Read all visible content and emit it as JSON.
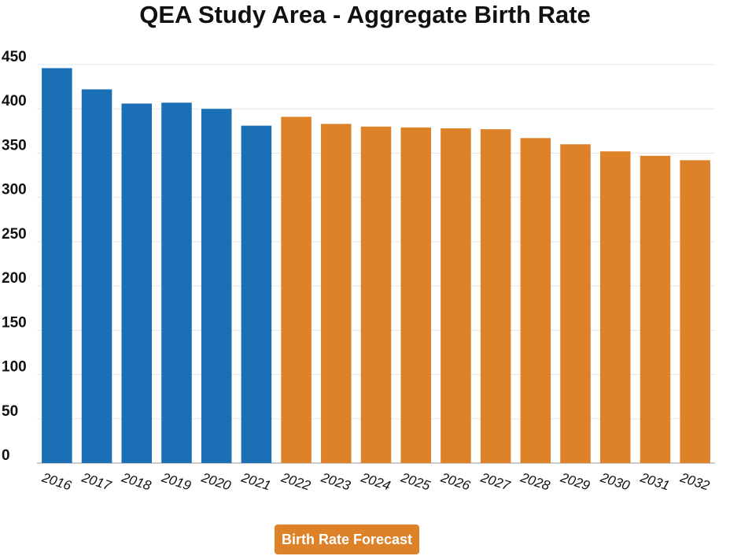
{
  "chart_data": {
    "type": "bar",
    "title": "QEA Study Area - Aggregate Birth Rate",
    "xlabel": "",
    "ylabel": "",
    "ylim": [
      0,
      450
    ],
    "yticks": [
      0,
      50,
      100,
      150,
      200,
      250,
      300,
      350,
      400,
      450
    ],
    "grid": true,
    "categories": [
      "2016",
      "2017",
      "2018",
      "2019",
      "2020",
      "2021",
      "2022",
      "2023",
      "2024",
      "2025",
      "2026",
      "2027",
      "2028",
      "2029",
      "2030",
      "2031",
      "2032"
    ],
    "values": [
      446,
      422,
      406,
      407,
      400,
      381,
      391,
      383,
      380,
      379,
      378,
      377,
      367,
      360,
      352,
      347,
      342
    ],
    "series_groups": [
      {
        "name": "",
        "from": 0,
        "to": 5,
        "color": "#1a6fb5"
      },
      {
        "name": "Birth Rate Forecast",
        "from": 6,
        "to": 16,
        "color": "#dd8229"
      }
    ],
    "legend": {
      "label": "Birth Rate Forecast",
      "position": "bottom-center",
      "color": "#dd8229"
    }
  }
}
